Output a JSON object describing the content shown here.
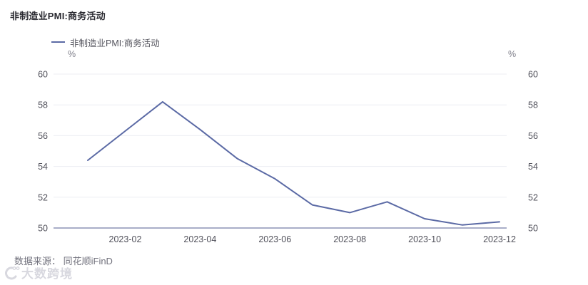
{
  "title": "非制造业PMI:商务活动",
  "legend": {
    "label": "非制造业PMI:商务活动"
  },
  "axis_unit_left": "%",
  "axis_unit_right": "%",
  "source": "数据来源： 同花顺iFinD",
  "watermark": "大数跨境",
  "colors": {
    "series": "#5b6aa5",
    "grid": "#eceef3",
    "axis_line": "#a8aec8",
    "tick_text": "#50505a",
    "title_text": "#2a2a31",
    "source_text": "#72727d",
    "watermark_text": "#d8d8df"
  },
  "chart_data": {
    "type": "line",
    "title": "非制造业PMI:商务活动",
    "x": [
      "2023-01",
      "2023-02",
      "2023-03",
      "2023-04",
      "2023-05",
      "2023-06",
      "2023-07",
      "2023-08",
      "2023-09",
      "2023-10",
      "2023-11",
      "2023-12"
    ],
    "series": [
      {
        "name": "非制造业PMI:商务活动",
        "values": [
          54.4,
          56.3,
          58.2,
          56.4,
          54.5,
          53.2,
          51.5,
          51.0,
          51.7,
          50.6,
          50.2,
          50.4
        ]
      }
    ],
    "y_ticks": [
      50,
      52,
      54,
      56,
      58,
      60
    ],
    "x_tick_labels": [
      "2023-02",
      "2023-04",
      "2023-06",
      "2023-08",
      "2023-10",
      "2023-12"
    ],
    "ylim": [
      50,
      60
    ],
    "unit": "%",
    "grid": true,
    "dual_y_axis": true,
    "legend_position": "top-left"
  }
}
